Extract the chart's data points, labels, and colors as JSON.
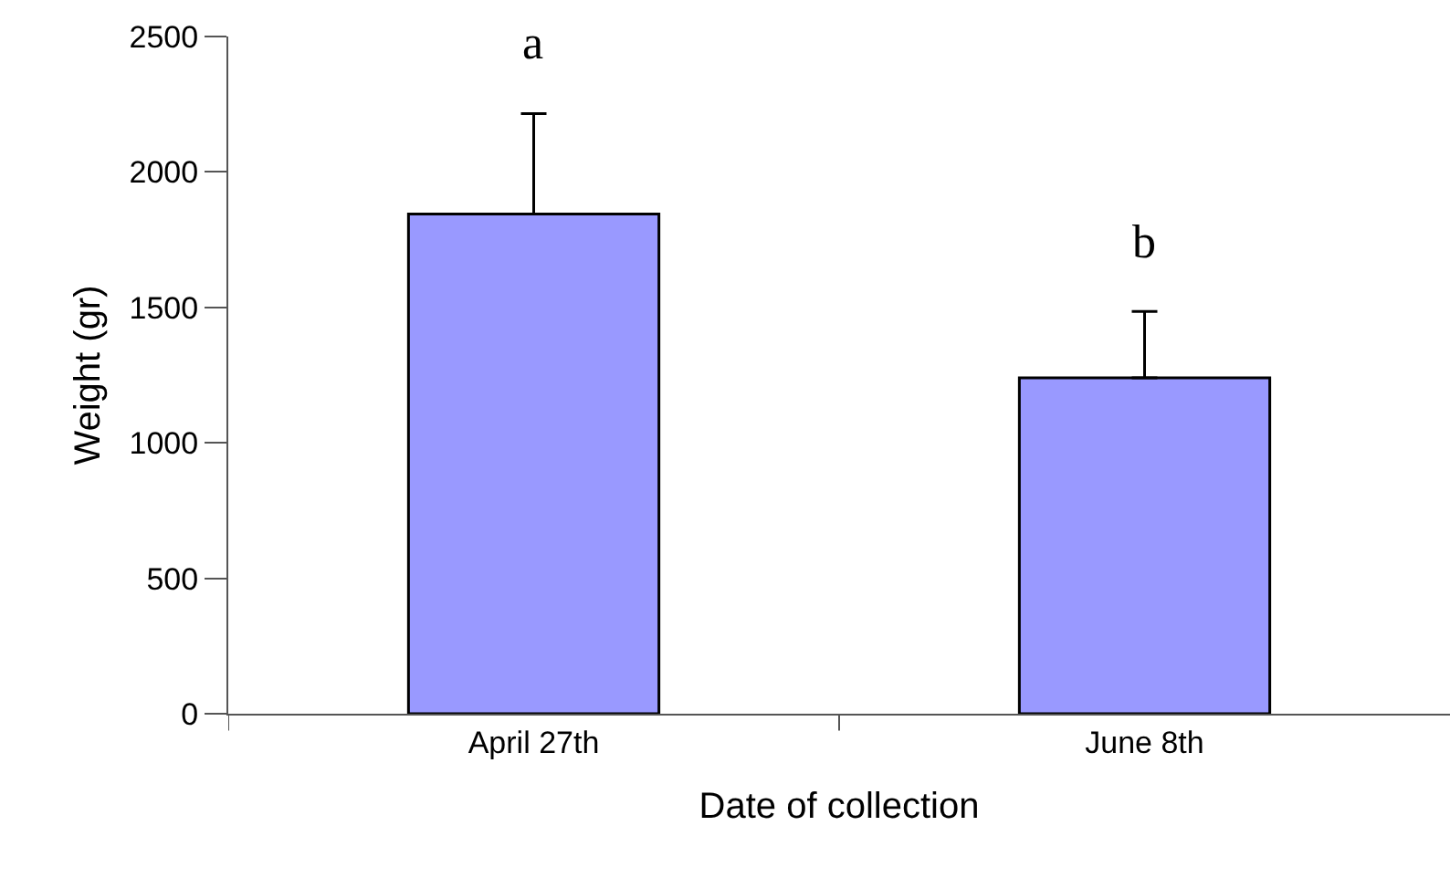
{
  "chart_data": {
    "type": "bar",
    "xlabel": "Date of collection",
    "ylabel": "Weight (gr)",
    "categories": [
      "April 27th",
      "June 8th"
    ],
    "values": [
      1845,
      1240
    ],
    "errors": [
      [
        1845,
        2215
      ],
      [
        1240,
        1485
      ]
    ],
    "color": "#9999ff",
    "ylim": [
      0,
      2500
    ],
    "yticks": [
      0,
      500,
      1000,
      1500,
      2000,
      2500
    ],
    "annotations": [
      "a",
      "b"
    ]
  }
}
